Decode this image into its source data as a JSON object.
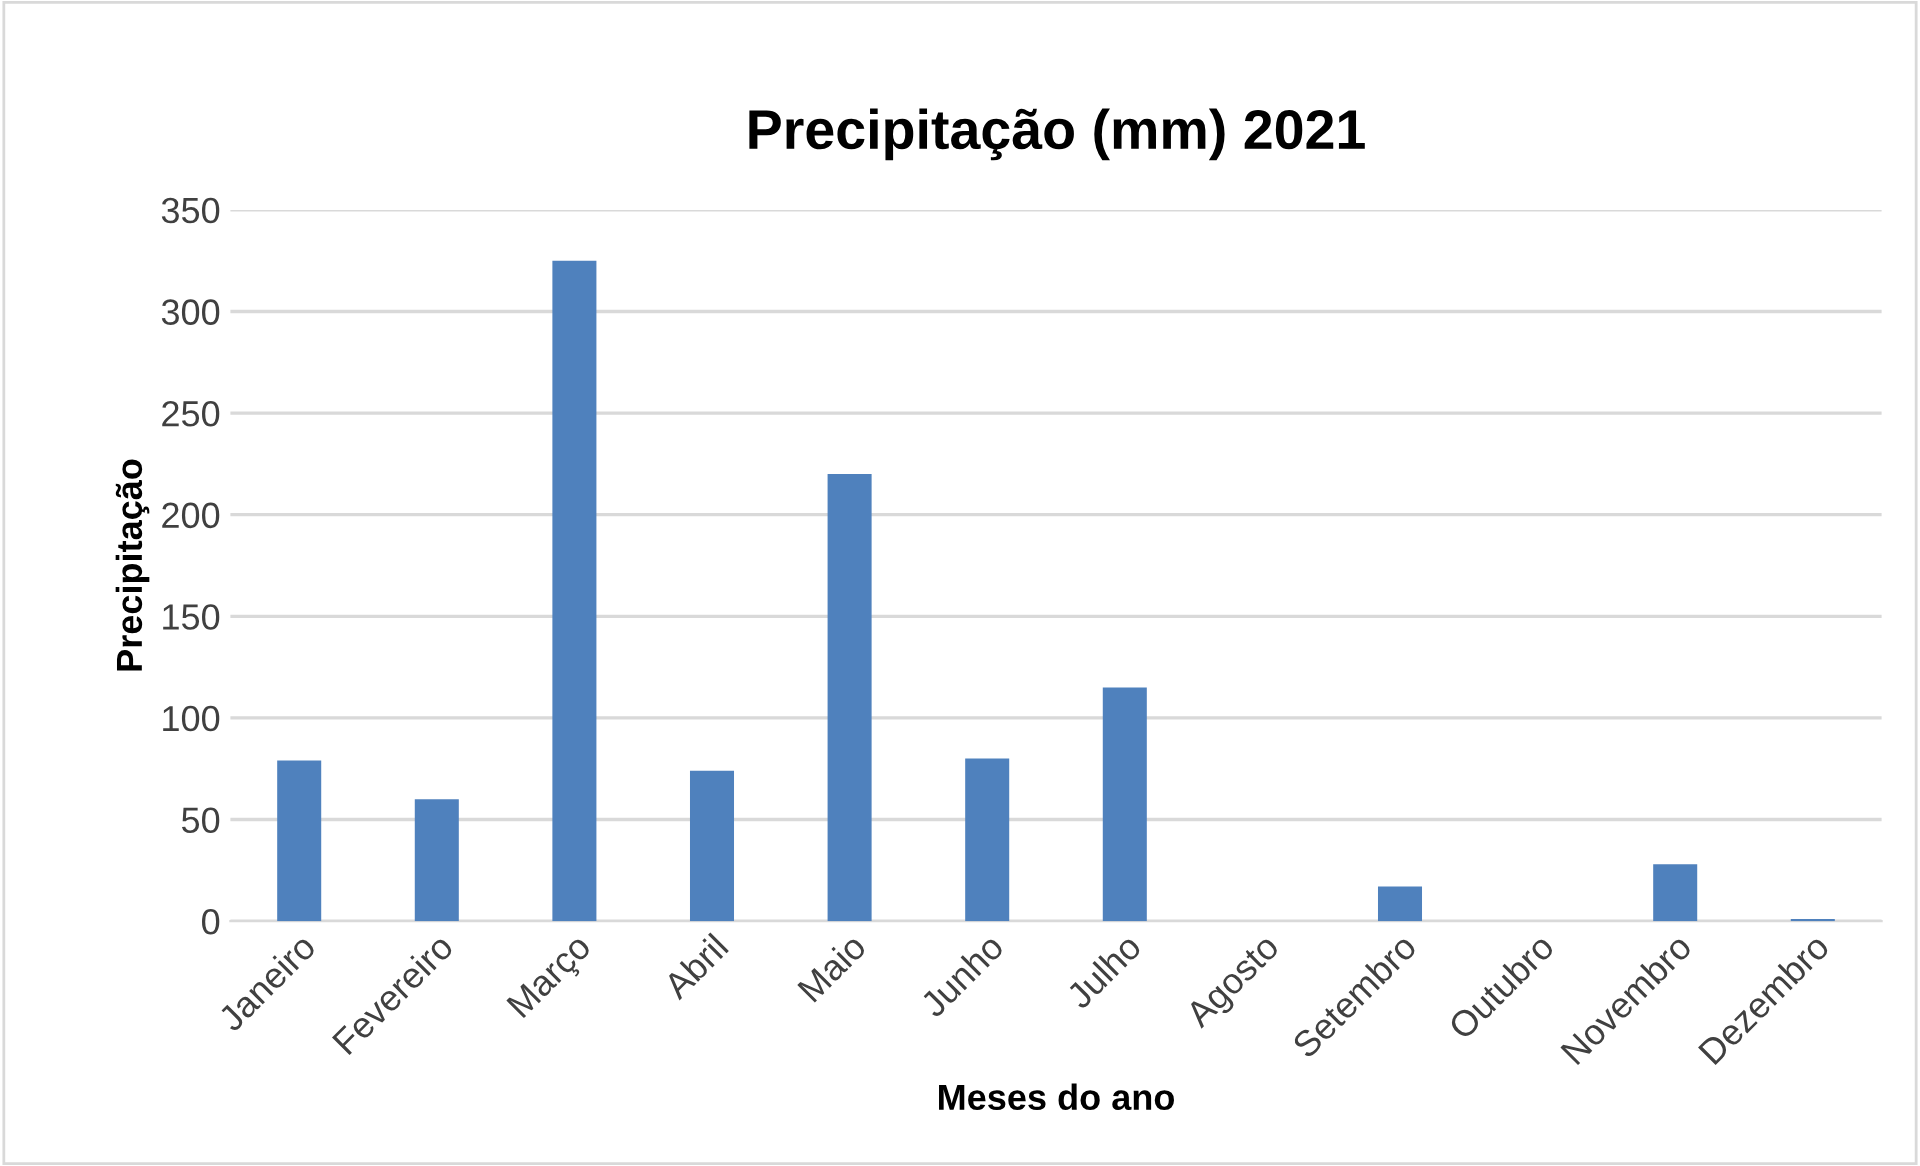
{
  "chart_data": {
    "type": "bar",
    "title": "Precipitação (mm) 2021",
    "xlabel": "Meses do ano",
    "ylabel": "Precipitação",
    "categories": [
      "Janeiro",
      "Fevereiro",
      "Março",
      "Abril",
      "Maio",
      "Junho",
      "Julho",
      "Agosto",
      "Setembro",
      "Outubro",
      "Novembro",
      "Dezembro"
    ],
    "values": [
      79,
      60,
      325,
      74,
      220,
      80,
      115,
      0,
      17,
      0,
      28,
      1
    ],
    "color": "#4f81bd",
    "ylim": [
      0,
      350
    ],
    "yticks": [
      0,
      50,
      100,
      150,
      200,
      250,
      300,
      350
    ],
    "grid": "y"
  }
}
